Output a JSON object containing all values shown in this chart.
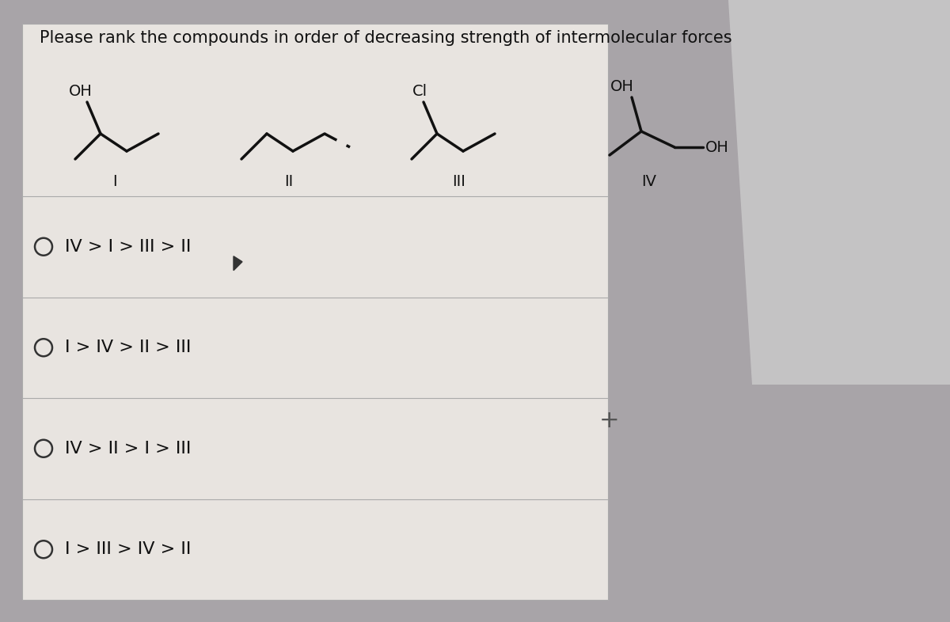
{
  "title": "Please rank the compounds in order of decreasing strength of intermolecular forces",
  "bg_outer": "#a8a4a8",
  "bg_inner": "#e8e4e0",
  "bg_bottom": "#c8c4c4",
  "options": [
    "IV > I > III > II",
    "I > IV > II > III",
    "IV > II > I > III",
    "I > III > IV > II"
  ],
  "title_fontsize": 15,
  "option_fontsize": 16,
  "mol_lw": 2.5,
  "mol_color": "#111111"
}
